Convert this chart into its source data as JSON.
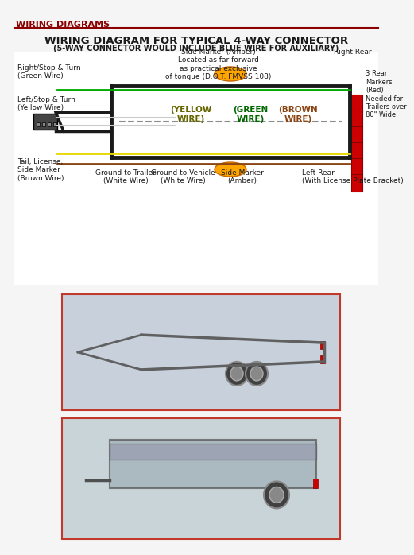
{
  "bg_color": "#f5f5f5",
  "header_text": "WIRING DIAGRAMS",
  "header_color": "#8b0000",
  "header_line_color": "#8b0000",
  "title_line1": "WIRING DIAGRAM FOR TYPICAL 4-WAY CONNECTOR",
  "title_line2": "(5-WAY CONNECTOR WOULD INCLUDE BLUE WIRE FOR AUXILIARY)",
  "title_color": "#1a1a1a",
  "diagram_bg": "#ffffff",
  "wire_yellow": "#e8d800",
  "wire_green": "#00aa00",
  "wire_brown": "#8B4513",
  "wire_white": "#cccccc",
  "wire_red": "#cc0000",
  "trailer_frame_color": "#1a1a1a",
  "label_color": "#1a1a1a",
  "box1_border": "#c0392b",
  "box2_border": "#c0392b",
  "box1_bg": "#c8d0dc",
  "box2_bg": "#c8d4d8",
  "utility_wall_color": "#9090a8",
  "annotations": {
    "right_stop": "Right/Stop & Turn\n(Green Wire)",
    "left_stop": "Left/Stop & Turn\n(Yellow Wire)",
    "tail_license": "Tail, License,\nSide Marker\n(Brown Wire)",
    "ground_trailer": "Ground to Trailer\n(White Wire)",
    "ground_vehicle": "Ground to Vehicle\n(White Wire)",
    "side_marker_left": "Side Marker\n(Amber)",
    "side_marker_top": "Side Marker (Amber)\nLocated as far forward\nas practical exclusive\nof tongue (D.O.T. FMVSS 108)",
    "right_rear": "Right Rear",
    "left_rear": "Left Rear\n(With License Plate Bracket)",
    "yellow_wire": "(YELLOW\nWIRE)",
    "green_wire": "(GREEN\nWIRE)",
    "brown_wire": "(BROWN\nWIRE)",
    "rear_markers": "3 Rear\nMarkers\n(Red)\nNeeded for\nTrailers over\n80\" Wide"
  }
}
